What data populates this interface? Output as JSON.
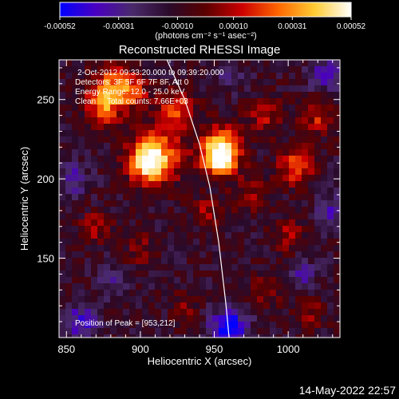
{
  "chart_data": {
    "type": "heatmap",
    "title": "Reconstructed RHESSI Image",
    "xlabel": "Heliocentric X (arcsec)",
    "ylabel": "Heliocentric Y (arcsec)",
    "xlim": [
      845,
      1035
    ],
    "ylim": [
      100,
      275
    ],
    "xticks": [
      850,
      900,
      950,
      1000
    ],
    "yticks": [
      150,
      200,
      250
    ],
    "colorbar": {
      "ticks": [
        "-0.00052",
        "-0.00031",
        "-0.00010",
        "0.00010",
        "0.00031",
        "0.00052"
      ],
      "vmin": -0.00052,
      "vmax": 0.00052,
      "label": "(photons cm⁻² s⁻¹ asec⁻²)",
      "colors": [
        "#0000ff",
        "#4a00c0",
        "#4a2a6a",
        "#2a0a2a",
        "#5a0000",
        "#cc0000",
        "#ff6600",
        "#ffcc33",
        "#ffffff"
      ]
    },
    "annotations": [
      "2-Oct-2012 09:33:20.000 to 09:39:20.000",
      "Detectors: 3F 5F 6F 7F 8F, Att 0",
      "Energy Range: 12.0 - 25.0 keV",
      "Clean     Total counts: 7.66E+03"
    ],
    "peak_label": "Position of Peak = [953,212]",
    "peak": [
      953,
      212
    ],
    "limb_points": [
      [
        918,
        275
      ],
      [
        930,
        250
      ],
      [
        940,
        222
      ],
      [
        947,
        195
      ],
      [
        953,
        160
      ],
      [
        958,
        120
      ],
      [
        960,
        100
      ]
    ],
    "blobs": [
      {
        "x": 953,
        "y": 212,
        "v": 0.00052,
        "r": 10
      },
      {
        "x": 955,
        "y": 220,
        "v": 0.00044,
        "r": 14
      },
      {
        "x": 905,
        "y": 210,
        "v": 0.00046,
        "r": 12
      },
      {
        "x": 912,
        "y": 215,
        "v": 0.00035,
        "r": 18
      },
      {
        "x": 880,
        "y": 258,
        "v": 0.00034,
        "r": 14
      },
      {
        "x": 875,
        "y": 245,
        "v": 0.0003,
        "r": 12
      },
      {
        "x": 895,
        "y": 255,
        "v": 0.00028,
        "r": 10
      },
      {
        "x": 925,
        "y": 245,
        "v": 0.00032,
        "r": 12
      },
      {
        "x": 1005,
        "y": 208,
        "v": 0.00033,
        "r": 12
      },
      {
        "x": 1020,
        "y": 240,
        "v": 0.00025,
        "r": 12
      },
      {
        "x": 985,
        "y": 240,
        "v": 0.00022,
        "r": 12
      },
      {
        "x": 975,
        "y": 190,
        "v": 0.00018,
        "r": 12
      },
      {
        "x": 1000,
        "y": 165,
        "v": 0.0002,
        "r": 10
      },
      {
        "x": 870,
        "y": 170,
        "v": 0.0002,
        "r": 10
      },
      {
        "x": 900,
        "y": 155,
        "v": 0.00016,
        "r": 10
      },
      {
        "x": 945,
        "y": 180,
        "v": 0.00018,
        "r": 10
      },
      {
        "x": 985,
        "y": 130,
        "v": 0.00018,
        "r": 10
      },
      {
        "x": 1015,
        "y": 115,
        "v": 0.00015,
        "r": 10
      },
      {
        "x": 930,
        "y": 120,
        "v": 0.00014,
        "r": 10
      },
      {
        "x": 960,
        "y": 105,
        "v": -0.00045,
        "r": 12
      },
      {
        "x": 860,
        "y": 110,
        "v": -0.00025,
        "r": 12
      },
      {
        "x": 855,
        "y": 200,
        "v": -0.0002,
        "r": 10
      },
      {
        "x": 1025,
        "y": 265,
        "v": -0.00022,
        "r": 12
      },
      {
        "x": 960,
        "y": 265,
        "v": -0.00015,
        "r": 10
      },
      {
        "x": 1030,
        "y": 180,
        "v": -0.0002,
        "r": 10
      },
      {
        "x": 1010,
        "y": 140,
        "v": -0.00018,
        "r": 10
      },
      {
        "x": 880,
        "y": 135,
        "v": -0.00015,
        "r": 10
      }
    ]
  },
  "footer": {
    "timestamp": "14-May-2022 22:57"
  }
}
